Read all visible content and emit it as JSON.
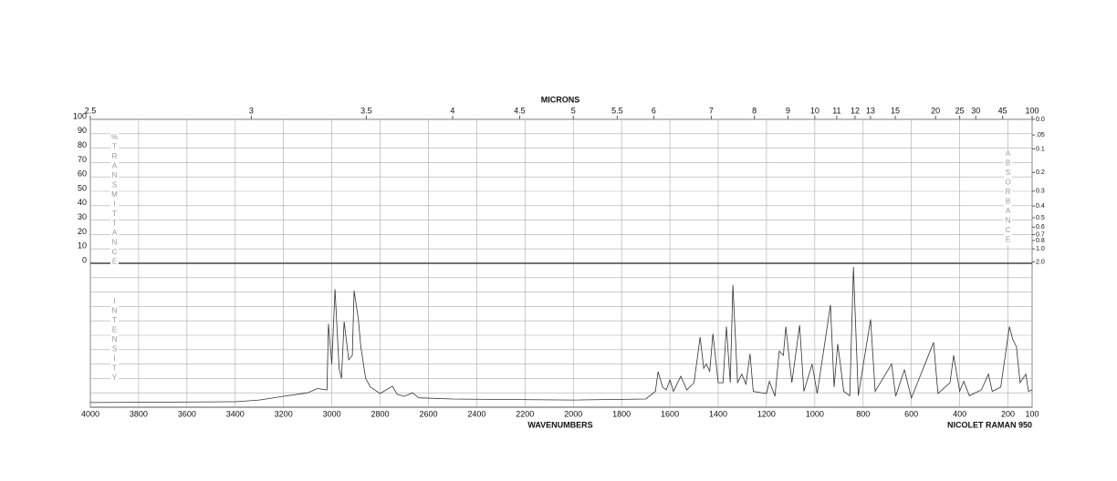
{
  "chart_data": {
    "type": "line",
    "x_label": "WAVENUMBERS",
    "top_label": "MICRONS",
    "footer": "NICOLET RAMAN 950",
    "left_label": "%TRANSMITTANCE",
    "intensity_label": "INTENSITY",
    "right_label": "ABSORBANCE",
    "xlim": [
      4000,
      100
    ],
    "xticks": [
      4000,
      3800,
      3600,
      3400,
      3200,
      3000,
      2800,
      2600,
      2400,
      2200,
      2000,
      1800,
      1600,
      1400,
      1200,
      1000,
      800,
      600,
      400,
      200,
      100
    ],
    "micron_ticks": [
      2.5,
      3,
      3.5,
      4,
      4.5,
      5,
      5.5,
      6,
      7,
      8,
      9,
      10,
      11,
      12,
      13,
      15,
      20,
      25,
      30,
      45,
      100
    ],
    "ylim": [
      0,
      100
    ],
    "yticks": [
      0,
      10,
      20,
      30,
      40,
      50,
      60,
      70,
      80,
      90,
      100
    ],
    "absorbance_ticks": [
      {
        "value": 0,
        "label": "0.0"
      },
      {
        "value": 0.05,
        "label": ".05"
      },
      {
        "value": 0.1,
        "label": "0.1"
      },
      {
        "value": 0.2,
        "label": "0.2"
      },
      {
        "value": 0.3,
        "label": "0.3"
      },
      {
        "value": 0.4,
        "label": "0.4"
      },
      {
        "value": 0.5,
        "label": "0.5"
      },
      {
        "value": 0.6,
        "label": "0.6"
      },
      {
        "value": 0.7,
        "label": "0.7"
      },
      {
        "value": 0.8,
        "label": "0.8"
      },
      {
        "value": 1,
        "label": "1.0"
      },
      {
        "value": 2,
        "label": "2.0"
      }
    ],
    "y2lim": [
      0,
      100
    ],
    "grid": true,
    "series": [
      {
        "name": "Raman intensity",
        "color": "#333333",
        "axis": "y2",
        "x": [
          4000,
          3400,
          3300,
          3200,
          3100,
          3060,
          3020,
          3014,
          3000,
          2987,
          2970,
          2960,
          2949,
          2930,
          2915,
          2908,
          2890,
          2880,
          2860,
          2840,
          2800,
          2749,
          2730,
          2700,
          2666,
          2640,
          2500,
          2000,
          1700,
          1660,
          1649,
          1630,
          1615,
          1600,
          1585,
          1555,
          1530,
          1500,
          1475,
          1460,
          1450,
          1435,
          1422,
          1400,
          1380,
          1366,
          1350,
          1339,
          1320,
          1302,
          1285,
          1268,
          1255,
          1200,
          1188,
          1165,
          1147,
          1130,
          1120,
          1095,
          1063,
          1045,
          1011,
          990,
          935,
          920,
          905,
          880,
          855,
          840,
          820,
          769,
          750,
          682,
          665,
          629,
          600,
          508,
          490,
          440,
          425,
          400,
          383,
          360,
          310,
          281,
          265,
          230,
          194,
          180,
          165,
          150,
          126,
          115,
          100
        ],
        "values": [
          3.2,
          3.8,
          5,
          7.6,
          10,
          13,
          12,
          58,
          30,
          82,
          27,
          20,
          59.5,
          33,
          36,
          81,
          61,
          42,
          20,
          14,
          9.5,
          14.6,
          9,
          7.5,
          10,
          6.5,
          5.7,
          5,
          5.7,
          11,
          24.7,
          14,
          12,
          19,
          11,
          21.5,
          12,
          17,
          48.7,
          27,
          30,
          25,
          51,
          17,
          17,
          56,
          17,
          85,
          17,
          23,
          16,
          37,
          11,
          9.5,
          18,
          7.6,
          39,
          36,
          56,
          17,
          57,
          11,
          30,
          9.5,
          71,
          14,
          44,
          11,
          8,
          97.5,
          8,
          61,
          11,
          30,
          7.6,
          26,
          6.3,
          45,
          9.5,
          17,
          36,
          11,
          18,
          8,
          12,
          23,
          11,
          14,
          56,
          47,
          42,
          17,
          23,
          11,
          12
        ]
      }
    ]
  }
}
